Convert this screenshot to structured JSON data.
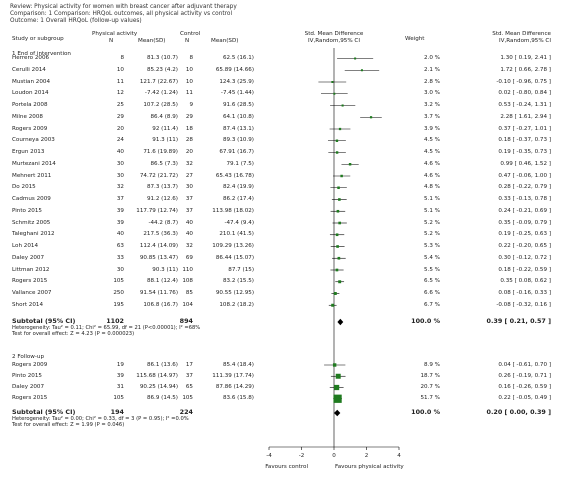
{
  "header": {
    "review": "Review:   Physical activity for women with breast cancer after adjuvant therapy",
    "comparison": "Comparison:   1 Comparison: HRQoL outcomes, all physical activity vs control",
    "outcome": "Outcome:   1 Overall HRQoL (follow-up values)"
  },
  "columns": {
    "study": "Study or subgroup",
    "pa": "Physical activity",
    "pa_n": "N",
    "pa_mean": "Mean(SD)",
    "control": "Control",
    "ctrl_n": "N",
    "ctrl_mean": "Mean(SD)",
    "effect_title": "Std. Mean Difference",
    "effect_method": "IV,Random,95% CI",
    "weight": "Weight",
    "result_title": "Std. Mean Difference",
    "result_method": "IV,Random,95% CI"
  },
  "subgroup1": {
    "title": "1 End of intervention",
    "subtotal_label": "Subtotal (95% CI)",
    "subtotal_pa_n": "1102",
    "subtotal_ctrl_n": "894",
    "subtotal_weight": "100.0 %",
    "subtotal_result": "0.39 [ 0.21, 0.57 ]",
    "heterogeneity": "Heterogeneity: Tau² = 0.11; Chi² = 65.99, df = 21 (P<0.00001); I² =68%",
    "overall_test": "Test for overall effect: Z = 4.23 (P = 0.000023)"
  },
  "subgroup2": {
    "title": "2 Follow-up",
    "subtotal_label": "Subtotal (95% CI)",
    "subtotal_pa_n": "194",
    "subtotal_ctrl_n": "224",
    "subtotal_weight": "100.0 %",
    "subtotal_result": "0.20 [ 0.00, 0.39 ]",
    "heterogeneity": "Heterogeneity: Tau² = 0.00; Chi² = 0.33, df = 3 (P = 0.95); I² =0.0%",
    "overall_test": "Test for overall effect: Z = 1.99 (P = 0.046)"
  },
  "axis": {
    "favours_left": "Favours control",
    "favours_right": "Favours physical activity"
  },
  "chart_data": {
    "type": "forest",
    "x_ticks": [
      -4,
      -2,
      0,
      2,
      4
    ],
    "xlim": [
      -4,
      4
    ],
    "subgroups": [
      {
        "name": "1 End of intervention",
        "studies": [
          {
            "study": "Herrero 2006",
            "pa_n": "8",
            "pa_mean": "81.3 (10.7)",
            "ctrl_n": "8",
            "ctrl_mean": "62.5 (16.1)",
            "weight": "2.0 %",
            "result": "1.30 [ 0.19, 2.41 ]",
            "est": 1.3,
            "lo": 0.19,
            "hi": 2.41,
            "w": 2.0
          },
          {
            "study": "Cerulli 2014",
            "pa_n": "10",
            "pa_mean": "85.23 (4.2)",
            "ctrl_n": "10",
            "ctrl_mean": "65.89 (14.66)",
            "weight": "2.1 %",
            "result": "1.72 [ 0.66, 2.78 ]",
            "est": 1.72,
            "lo": 0.66,
            "hi": 2.78,
            "w": 2.1
          },
          {
            "study": "Mustian 2004",
            "pa_n": "11",
            "pa_mean": "121.7 (22.67)",
            "ctrl_n": "10",
            "ctrl_mean": "124.3 (25.9)",
            "weight": "2.8 %",
            "result": "-0.10 [ -0.96, 0.75 ]",
            "est": -0.1,
            "lo": -0.96,
            "hi": 0.75,
            "w": 2.8
          },
          {
            "study": "Loudon 2014",
            "pa_n": "12",
            "pa_mean": "-7.42 (1.24)",
            "ctrl_n": "11",
            "ctrl_mean": "-7.45 (1.44)",
            "weight": "3.0 %",
            "result": "0.02 [ -0.80, 0.84 ]",
            "est": 0.02,
            "lo": -0.8,
            "hi": 0.84,
            "w": 3.0
          },
          {
            "study": "Portela 2008",
            "pa_n": "25",
            "pa_mean": "107.2 (28.5)",
            "ctrl_n": "9",
            "ctrl_mean": "91.6 (28.5)",
            "weight": "3.2 %",
            "result": "0.53 [ -0.24, 1.31 ]",
            "est": 0.53,
            "lo": -0.24,
            "hi": 1.31,
            "w": 3.2
          },
          {
            "study": "Milne 2008",
            "pa_n": "29",
            "pa_mean": "86.4 (8.9)",
            "ctrl_n": "29",
            "ctrl_mean": "64.1 (10.8)",
            "weight": "3.7 %",
            "result": "2.28 [ 1.61, 2.94 ]",
            "est": 2.28,
            "lo": 1.61,
            "hi": 2.94,
            "w": 3.7
          },
          {
            "study": "Rogers 2009",
            "pa_n": "20",
            "pa_mean": "92 (11.4)",
            "ctrl_n": "18",
            "ctrl_mean": "87.4 (13.1)",
            "weight": "3.9 %",
            "result": "0.37 [ -0.27, 1.01 ]",
            "est": 0.37,
            "lo": -0.27,
            "hi": 1.01,
            "w": 3.9
          },
          {
            "study": "Courneya 2003",
            "pa_n": "24",
            "pa_mean": "91.3 (11)",
            "ctrl_n": "28",
            "ctrl_mean": "89.3 (10.9)",
            "weight": "4.5 %",
            "result": "0.18 [ -0.37, 0.73 ]",
            "est": 0.18,
            "lo": -0.37,
            "hi": 0.73,
            "w": 4.5
          },
          {
            "study": "Ergun 2013",
            "pa_n": "40",
            "pa_mean": "71.6 (19.89)",
            "ctrl_n": "20",
            "ctrl_mean": "67.91 (16.7)",
            "weight": "4.5 %",
            "result": "0.19 [ -0.35, 0.73 ]",
            "est": 0.19,
            "lo": -0.35,
            "hi": 0.73,
            "w": 4.5
          },
          {
            "study": "Murtezani 2014",
            "pa_n": "30",
            "pa_mean": "86.5 (7.3)",
            "ctrl_n": "32",
            "ctrl_mean": "79.1 (7.5)",
            "weight": "4.6 %",
            "result": "0.99 [ 0.46, 1.52 ]",
            "est": 0.99,
            "lo": 0.46,
            "hi": 1.52,
            "w": 4.6
          },
          {
            "study": "Mehnert 2011",
            "pa_n": "30",
            "pa_mean": "74.72 (21.72)",
            "ctrl_n": "27",
            "ctrl_mean": "65.43 (16.78)",
            "weight": "4.6 %",
            "result": "0.47 [ -0.06, 1.00 ]",
            "est": 0.47,
            "lo": -0.06,
            "hi": 1.0,
            "w": 4.6
          },
          {
            "study": "Do 2015",
            "pa_n": "32",
            "pa_mean": "87.3 (13.7)",
            "ctrl_n": "30",
            "ctrl_mean": "82.4 (19.9)",
            "weight": "4.8 %",
            "result": "0.28 [ -0.22, 0.79 ]",
            "est": 0.28,
            "lo": -0.22,
            "hi": 0.79,
            "w": 4.8
          },
          {
            "study": "Cadmus 2009",
            "pa_n": "37",
            "pa_mean": "91.2 (12.6)",
            "ctrl_n": "37",
            "ctrl_mean": "86.2 (17.4)",
            "weight": "5.1 %",
            "result": "0.33 [ -0.13, 0.78 ]",
            "est": 0.33,
            "lo": -0.13,
            "hi": 0.78,
            "w": 5.1
          },
          {
            "study": "Pinto 2015",
            "pa_n": "39",
            "pa_mean": "117.79 (12.74)",
            "ctrl_n": "37",
            "ctrl_mean": "113.98 (18.02)",
            "weight": "5.1 %",
            "result": "0.24 [ -0.21, 0.69 ]",
            "est": 0.24,
            "lo": -0.21,
            "hi": 0.69,
            "w": 5.1
          },
          {
            "study": "Schmitz 2005",
            "pa_n": "39",
            "pa_mean": "-44.2 (8.7)",
            "ctrl_n": "40",
            "ctrl_mean": "-47.4 (9.4)",
            "weight": "5.2 %",
            "result": "0.35 [ -0.09, 0.79 ]",
            "est": 0.35,
            "lo": -0.09,
            "hi": 0.79,
            "w": 5.2
          },
          {
            "study": "Taleghani 2012",
            "pa_n": "40",
            "pa_mean": "217.5 (36.3)",
            "ctrl_n": "40",
            "ctrl_mean": "210.1 (41.5)",
            "weight": "5.2 %",
            "result": "0.19 [ -0.25, 0.63 ]",
            "est": 0.19,
            "lo": -0.25,
            "hi": 0.63,
            "w": 5.2
          },
          {
            "study": "Loh 2014",
            "pa_n": "63",
            "pa_mean": "112.4 (14.09)",
            "ctrl_n": "32",
            "ctrl_mean": "109.29 (13.26)",
            "weight": "5.3 %",
            "result": "0.22 [ -0.20, 0.65 ]",
            "est": 0.22,
            "lo": -0.2,
            "hi": 0.65,
            "w": 5.3
          },
          {
            "study": "Daley 2007",
            "pa_n": "33",
            "pa_mean": "90.85 (13.47)",
            "ctrl_n": "69",
            "ctrl_mean": "86.44 (15.07)",
            "weight": "5.4 %",
            "result": "0.30 [ -0.12, 0.72 ]",
            "est": 0.3,
            "lo": -0.12,
            "hi": 0.72,
            "w": 5.4
          },
          {
            "study": "Littman 2012",
            "pa_n": "30",
            "pa_mean": "90.3 (11)",
            "ctrl_n": "110",
            "ctrl_mean": "87.7 (15)",
            "weight": "5.5 %",
            "result": "0.18 [ -0.22, 0.59 ]",
            "est": 0.18,
            "lo": -0.22,
            "hi": 0.59,
            "w": 5.5
          },
          {
            "study": "Rogers 2015",
            "pa_n": "105",
            "pa_mean": "88.1 (12.4)",
            "ctrl_n": "108",
            "ctrl_mean": "83.2 (15.5)",
            "weight": "6.5 %",
            "result": "0.35 [ 0.08, 0.62 ]",
            "est": 0.35,
            "lo": 0.08,
            "hi": 0.62,
            "w": 6.5
          },
          {
            "study": "Vallance 2007",
            "pa_n": "250",
            "pa_mean": "91.54 (11.76)",
            "ctrl_n": "85",
            "ctrl_mean": "90.55 (12.95)",
            "weight": "6.6 %",
            "result": "0.08 [ -0.16, 0.33 ]",
            "est": 0.08,
            "lo": -0.16,
            "hi": 0.33,
            "w": 6.6
          },
          {
            "study": "Short 2014",
            "pa_n": "195",
            "pa_mean": "106.8 (16.7)",
            "ctrl_n": "104",
            "ctrl_mean": "108.2 (18.2)",
            "weight": "6.7 %",
            "result": "-0.08 [ -0.32, 0.16 ]",
            "est": -0.08,
            "lo": -0.32,
            "hi": 0.16,
            "w": 6.7
          }
        ],
        "subtotal": {
          "est": 0.39,
          "lo": 0.21,
          "hi": 0.57
        }
      },
      {
        "name": "2 Follow-up",
        "studies": [
          {
            "study": "Rogers 2009",
            "pa_n": "19",
            "pa_mean": "86.1 (13.6)",
            "ctrl_n": "17",
            "ctrl_mean": "85.4 (18.4)",
            "weight": "8.9 %",
            "result": "0.04 [ -0.61, 0.70 ]",
            "est": 0.04,
            "lo": -0.61,
            "hi": 0.7,
            "w": 8.9
          },
          {
            "study": "Pinto 2015",
            "pa_n": "39",
            "pa_mean": "115.68 (14.97)",
            "ctrl_n": "37",
            "ctrl_mean": "111.39 (17.74)",
            "weight": "18.7 %",
            "result": "0.26 [ -0.19, 0.71 ]",
            "est": 0.26,
            "lo": -0.19,
            "hi": 0.71,
            "w": 18.7
          },
          {
            "study": "Daley 2007",
            "pa_n": "31",
            "pa_mean": "90.25 (14.94)",
            "ctrl_n": "65",
            "ctrl_mean": "87.86 (14.29)",
            "weight": "20.7 %",
            "result": "0.16 [ -0.26, 0.59 ]",
            "est": 0.16,
            "lo": -0.26,
            "hi": 0.59,
            "w": 20.7
          },
          {
            "study": "Rogers 2015",
            "pa_n": "105",
            "pa_mean": "86.9 (14.5)",
            "ctrl_n": "105",
            "ctrl_mean": "83.6 (15.8)",
            "weight": "51.7 %",
            "result": "0.22 [ -0.05, 0.49 ]",
            "est": 0.22,
            "lo": -0.05,
            "hi": 0.49,
            "w": 51.7
          }
        ],
        "subtotal": {
          "est": 0.2,
          "lo": 0.0,
          "hi": 0.39
        }
      }
    ]
  }
}
